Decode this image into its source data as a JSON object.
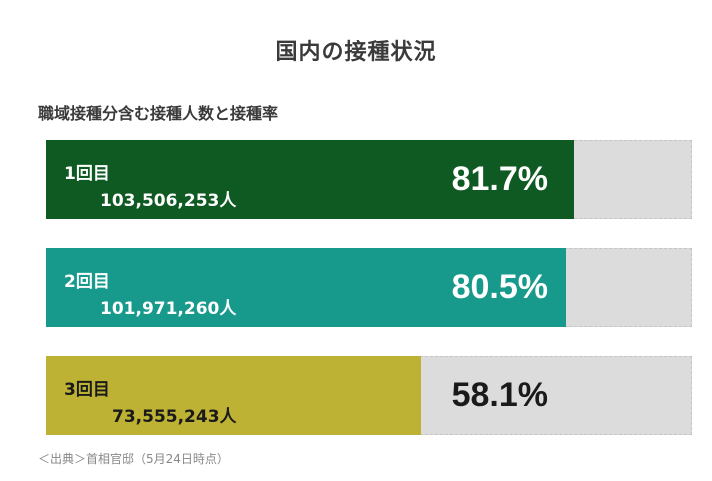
{
  "title": "国内の接種状況",
  "subtitle": "職域接種分含む接種人数と接種率",
  "source": "＜出典＞首相官邸（5月24日時点）",
  "chart_data": {
    "type": "bar",
    "orientation": "horizontal",
    "title": "国内の接種状況",
    "subtitle": "職域接種分含む接種人数と接種率",
    "categories": [
      "1回目",
      "2回目",
      "3回目"
    ],
    "counts": [
      "103,506,253人",
      "101,971,260人",
      "73,555,243人"
    ],
    "value_labels": [
      "81.7%",
      "80.5%",
      "58.1%"
    ],
    "values": [
      81.7,
      80.5,
      58.1
    ],
    "xlim": [
      0,
      100
    ],
    "colors": [
      "#0f5a22",
      "#179a8c",
      "#bdb233"
    ],
    "label_colors": [
      "#ffffff",
      "#ffffff",
      "#1a1a1a"
    ],
    "track_color": "#dcdcdc"
  }
}
